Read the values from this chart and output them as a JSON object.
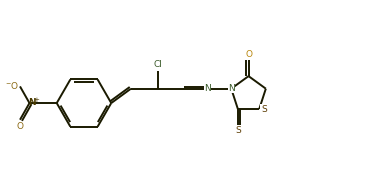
{
  "background_color": "#ffffff",
  "bond_color": "#1a1a00",
  "N_color": "#3a5a2a",
  "O_color": "#b8860b",
  "S_color": "#5a3a00",
  "Cl_color": "#3a5a2a",
  "NO2_N_color": "#4a3a00",
  "NO2_O_color": "#8b6914",
  "fig_width": 3.8,
  "fig_height": 1.91,
  "dpi": 100,
  "xlim": [
    0,
    10
  ],
  "ylim": [
    0,
    5
  ]
}
